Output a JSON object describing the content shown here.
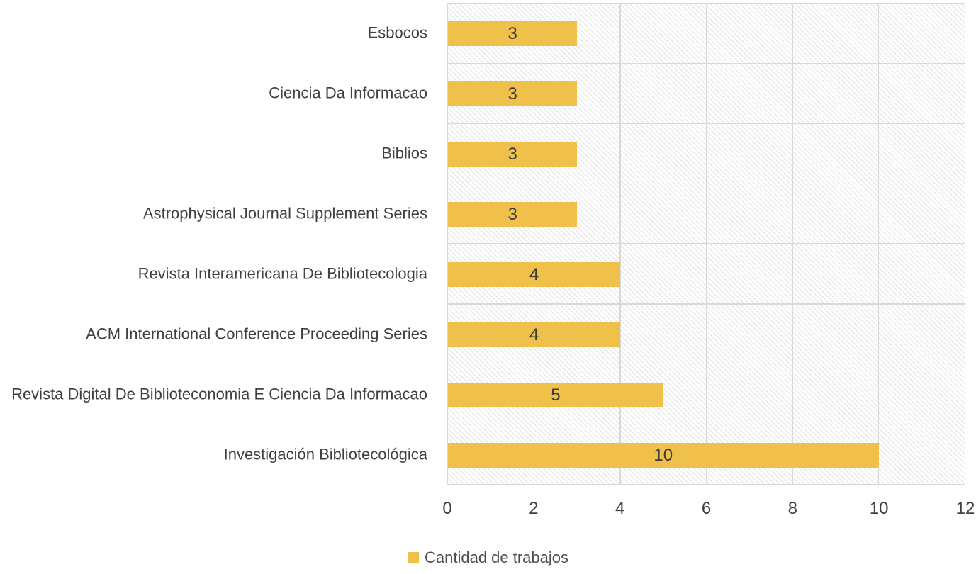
{
  "chart_data": {
    "type": "bar",
    "orientation": "horizontal",
    "title": "",
    "xlabel": "",
    "ylabel": "",
    "categories": [
      "Esbocos",
      "Ciencia Da Informacao",
      "Biblios",
      "Astrophysical Journal Supplement Series",
      "Revista Interamericana De Bibliotecologia",
      "ACM International Conference Proceeding Series",
      "Revista Digital De Biblioteconomia E Ciencia Da Informacao",
      "Investigación Bibliotecológica"
    ],
    "series": [
      {
        "name": "Cantidad de trabajos",
        "values": [
          3,
          3,
          3,
          3,
          4,
          4,
          5,
          10
        ]
      }
    ],
    "data_labels": [
      "3",
      "3",
      "3",
      "3",
      "4",
      "4",
      "5",
      "10"
    ],
    "xlim": [
      0,
      12
    ],
    "xticks": [
      0,
      2,
      4,
      6,
      8,
      10,
      12
    ],
    "grid": {
      "vertical_gridlines": true,
      "category_band_separators": true
    },
    "legend": {
      "position": "bottom-center",
      "entries": [
        "Cantidad de trabajos"
      ]
    },
    "colors": {
      "bar": "#EFC04A",
      "grid": "#D9D9D9",
      "axis_text": "#404040",
      "data_label": "#3B3B3B",
      "hatch_line": "#9494A4",
      "background": "#FFFFFF"
    }
  }
}
